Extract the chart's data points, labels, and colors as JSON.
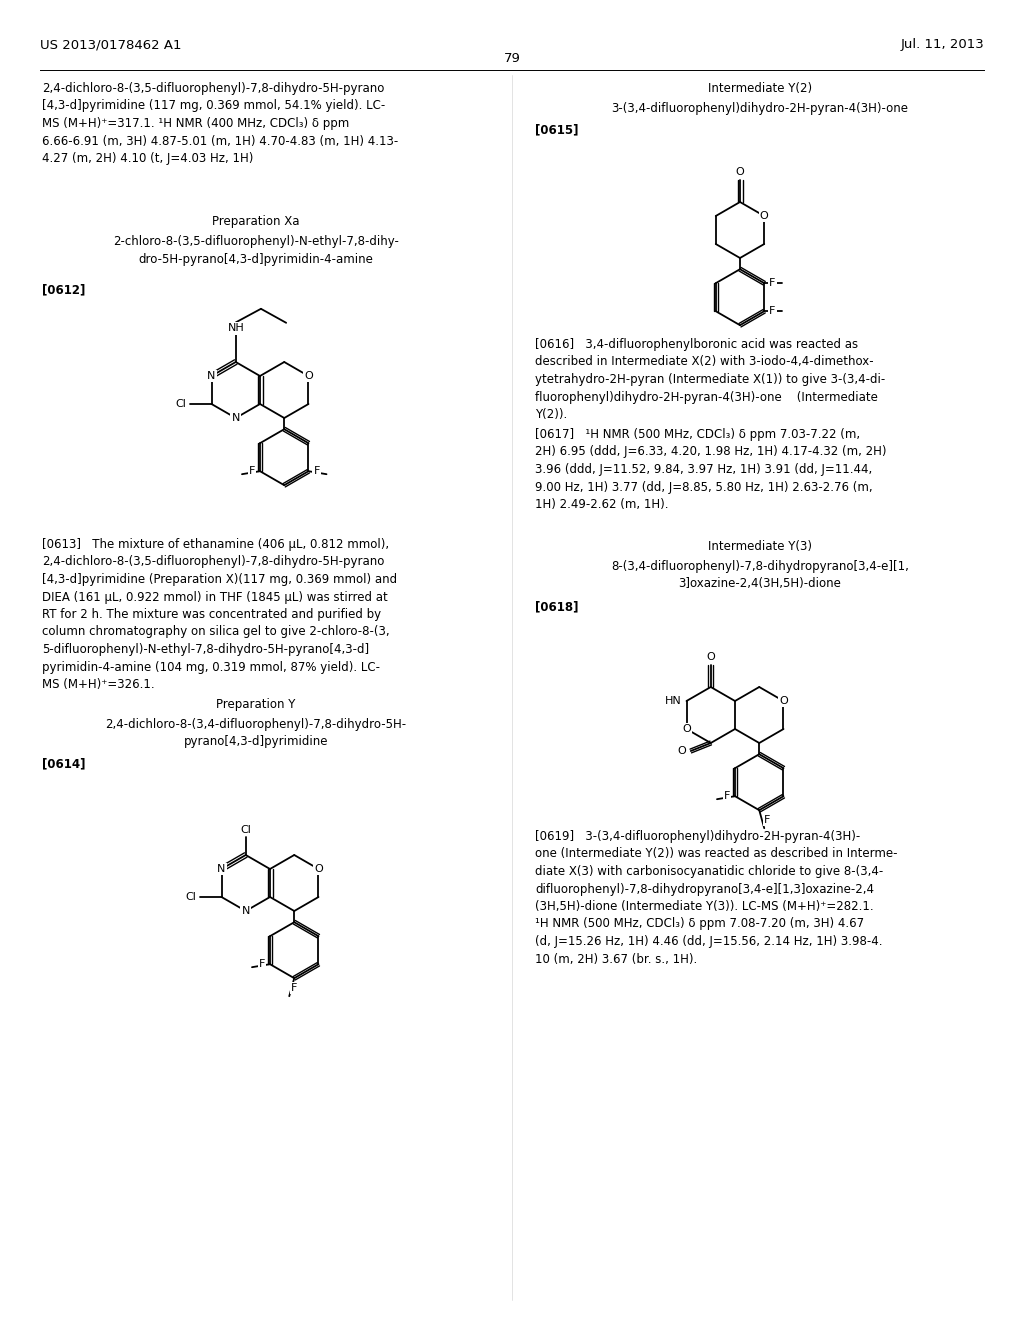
{
  "background_color": "#ffffff",
  "header_left": "US 2013/0178462 A1",
  "header_right": "Jul. 11, 2013",
  "page_number": "79"
}
